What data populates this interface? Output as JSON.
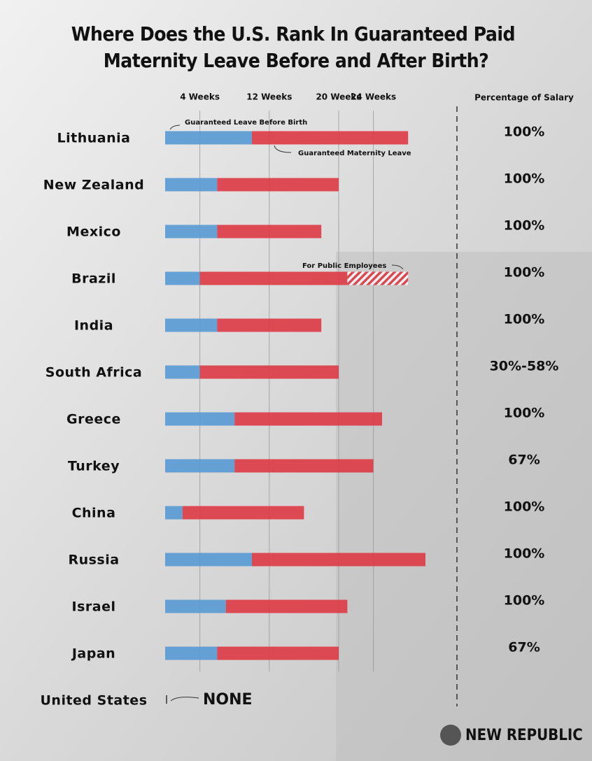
{
  "chart_data": {
    "type": "bar",
    "orientation": "horizontal",
    "title": "Where Does the U.S. Rank In Guaranteed Paid Maternity Leave Before and After Birth?",
    "categories": [
      "Lithuania",
      "New Zealand",
      "Mexico",
      "Brazil",
      "India",
      "South Africa",
      "Greece",
      "Turkey",
      "China",
      "Russia",
      "Israel",
      "Japan",
      "United States"
    ],
    "series": [
      {
        "name": "Guaranteed Leave Before Birth",
        "color": "#5b9bd5",
        "values": [
          10,
          6,
          6,
          4,
          6,
          4,
          8,
          8,
          2,
          10,
          7,
          6,
          null
        ]
      },
      {
        "name": "Guaranteed Maternity Leave",
        "color": "#dc3d47",
        "values": [
          18,
          14,
          12,
          17,
          12,
          16,
          17,
          16,
          14,
          20,
          14,
          14,
          null
        ]
      },
      {
        "name": "For Public Employees",
        "color": "hatch",
        "values": [
          null,
          null,
          null,
          7,
          null,
          null,
          null,
          null,
          null,
          null,
          null,
          null,
          null
        ]
      }
    ],
    "xlim": [
      0,
      30
    ],
    "xticks": [
      {
        "value": 4,
        "label": "4 Weeks"
      },
      {
        "value": 12,
        "label": "12 Weeks"
      },
      {
        "value": 20,
        "label": "20 Weeks"
      },
      {
        "value": 24,
        "label": "24 Weeks"
      }
    ],
    "grid": true,
    "salary": {
      "title": "Percentage of Salary",
      "labels": [
        "100%",
        "100%",
        "100%",
        "100%",
        "100%",
        "30%-58%",
        "100%",
        "67%",
        "100%",
        "100%",
        "100%",
        "67%",
        null
      ]
    },
    "us_note": "NONE",
    "source": "NEW REPUBLIC"
  }
}
